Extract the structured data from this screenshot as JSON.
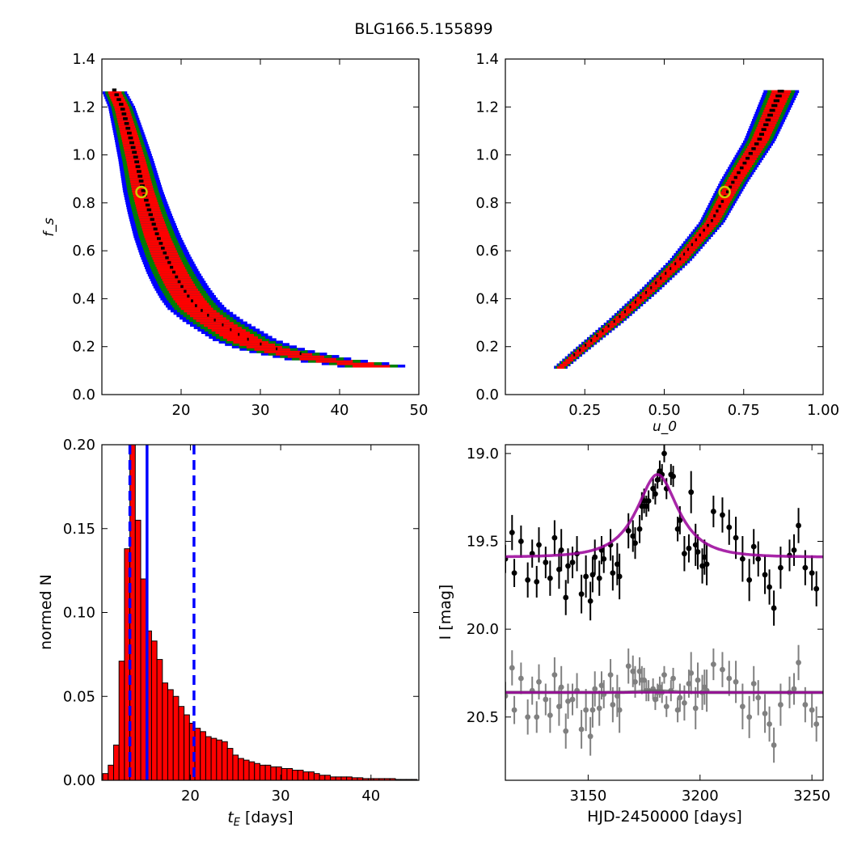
{
  "title": "BLG166.5.155899",
  "chart_data": [
    {
      "panel": "top-left",
      "type": "heatmap",
      "title": "",
      "xlabel": "",
      "ylabel": "f_s",
      "xlim": [
        10,
        50
      ],
      "ylim": [
        0.0,
        1.4
      ],
      "xticks": [
        20,
        30,
        40,
        50
      ],
      "yticks": [
        0.0,
        0.2,
        0.4,
        0.6,
        0.8,
        1.0,
        1.2,
        1.4
      ],
      "ytick_labels": [
        "0.0",
        "0.2",
        "0.4",
        "0.6",
        "0.8",
        "1.0",
        "1.2",
        "1.4"
      ],
      "levels": [
        {
          "color": "#0000ff",
          "level": "3-sigma"
        },
        {
          "color": "#007f00",
          "level": "2-sigma"
        },
        {
          "color": "#ff0000",
          "level": "1-sigma"
        },
        {
          "color": "#000000",
          "level": "best"
        }
      ],
      "ridge": [
        [
          11.5,
          1.27
        ],
        [
          12.5,
          1.2
        ],
        [
          13.5,
          1.08
        ],
        [
          14.3,
          0.98
        ],
        [
          15.2,
          0.85
        ],
        [
          16.0,
          0.76
        ],
        [
          17.0,
          0.66
        ],
        [
          18.0,
          0.58
        ],
        [
          19.0,
          0.51
        ],
        [
          20.0,
          0.45
        ],
        [
          21.0,
          0.4
        ],
        [
          22.0,
          0.36
        ],
        [
          24.0,
          0.31
        ],
        [
          26.0,
          0.27
        ],
        [
          28.0,
          0.23
        ],
        [
          30.0,
          0.205
        ],
        [
          32.0,
          0.185
        ],
        [
          35.0,
          0.165
        ],
        [
          38.0,
          0.145
        ],
        [
          42.0,
          0.13
        ],
        [
          45.0,
          0.115
        ]
      ],
      "best_fit": [
        15.0,
        0.845
      ]
    },
    {
      "panel": "top-right",
      "type": "heatmap",
      "title": "",
      "xlabel": "u_0",
      "ylabel": "",
      "xlim": [
        0.0,
        1.0
      ],
      "ylim": [
        0.0,
        1.4
      ],
      "xticks": [
        0.25,
        0.5,
        0.75,
        1.0
      ],
      "xtick_labels": [
        "0.25",
        "0.50",
        "0.75",
        "1.00"
      ],
      "yticks": [
        0.0,
        0.2,
        0.4,
        0.6,
        0.8,
        1.0,
        1.2,
        1.4
      ],
      "ytick_labels": [
        "0.0",
        "0.2",
        "0.4",
        "0.6",
        "0.8",
        "1.0",
        "1.2",
        "1.4"
      ],
      "ridge": [
        [
          0.17,
          0.11
        ],
        [
          0.25,
          0.2
        ],
        [
          0.35,
          0.31
        ],
        [
          0.45,
          0.43
        ],
        [
          0.55,
          0.56
        ],
        [
          0.65,
          0.72
        ],
        [
          0.72,
          0.89
        ],
        [
          0.8,
          1.06
        ],
        [
          0.87,
          1.27
        ]
      ],
      "best_fit": [
        0.69,
        0.845
      ]
    },
    {
      "panel": "bottom-left",
      "type": "bar",
      "title": "",
      "xlabel": "t_E [days]",
      "xlabel_unit": "[days]",
      "ylabel": "normed N",
      "xlim": [
        10.2,
        45.3
      ],
      "ylim": [
        0.0,
        0.2
      ],
      "xticks": [
        20,
        30,
        40
      ],
      "yticks": [
        0.0,
        0.05,
        0.1,
        0.15,
        0.2
      ],
      "ytick_labels": [
        "0.00",
        "0.05",
        "0.10",
        "0.15",
        "0.20"
      ],
      "bin_start": 10.3,
      "bin_width": 0.6,
      "values": [
        0.004,
        0.009,
        0.021,
        0.071,
        0.138,
        0.2,
        0.155,
        0.12,
        0.089,
        0.083,
        0.072,
        0.058,
        0.054,
        0.05,
        0.044,
        0.039,
        0.034,
        0.031,
        0.029,
        0.026,
        0.025,
        0.024,
        0.023,
        0.019,
        0.015,
        0.013,
        0.012,
        0.011,
        0.01,
        0.009,
        0.009,
        0.008,
        0.008,
        0.007,
        0.007,
        0.006,
        0.006,
        0.005,
        0.005,
        0.004,
        0.003,
        0.003,
        0.002,
        0.002,
        0.002,
        0.002,
        0.0015,
        0.0015,
        0.001,
        0.001,
        0.001,
        0.001,
        0.001,
        0.001,
        0.0005,
        0.0005,
        0.0005,
        0.0005
      ],
      "bar_color": "#ff0000",
      "vlines": [
        {
          "x": 13.3,
          "style": "dashed",
          "color": "#0000ff"
        },
        {
          "x": 15.2,
          "style": "solid",
          "color": "#0000ff"
        },
        {
          "x": 20.4,
          "style": "dashed",
          "color": "#0000ff"
        }
      ]
    },
    {
      "panel": "bottom-right",
      "type": "scatter",
      "title": "",
      "xlabel": "HJD-2450000 [days]",
      "ylabel": "I [mag]",
      "xlim": [
        3113,
        3255
      ],
      "ylim": [
        20.86,
        18.95
      ],
      "y_inverted": true,
      "xticks": [
        3150,
        3200,
        3250
      ],
      "yticks": [
        19.0,
        19.5,
        20.0,
        20.5
      ],
      "ytick_labels": [
        "19.0",
        "19.5",
        "20.0",
        "20.5"
      ],
      "model": {
        "t0": 3181,
        "tE": 15.2,
        "u0": 0.69,
        "baseline": 19.59,
        "peak": 19.12,
        "color": "#990099"
      },
      "residual_baseline": 20.36,
      "series": [
        {
          "kind": "data",
          "color": "#000000",
          "x": [
            3113,
            3116,
            3117,
            3120,
            3123,
            3125,
            3127,
            3128,
            3131,
            3133,
            3135,
            3137,
            3138,
            3140,
            3141,
            3143,
            3145,
            3147,
            3149,
            3151,
            3152,
            3153,
            3155,
            3156,
            3157,
            3160,
            3161,
            3163,
            3164,
            3168,
            3170,
            3171,
            3173,
            3174,
            3175,
            3176,
            3177,
            3179,
            3180,
            3181,
            3182,
            3183,
            3184,
            3185,
            3187,
            3188,
            3190,
            3191,
            3193,
            3195,
            3196,
            3198,
            3199,
            3201,
            3202,
            3203,
            3206,
            3210,
            3213,
            3216,
            3219,
            3222,
            3224,
            3226,
            3229,
            3231,
            3233,
            3236,
            3240,
            3242,
            3244,
            3247,
            3250,
            3252
          ],
          "y": [
            19.6,
            19.45,
            19.68,
            19.5,
            19.72,
            19.57,
            19.73,
            19.52,
            19.62,
            19.71,
            19.48,
            19.66,
            19.55,
            19.82,
            19.64,
            19.62,
            19.57,
            19.8,
            19.7,
            19.84,
            19.69,
            19.59,
            19.71,
            19.55,
            19.6,
            19.52,
            19.68,
            19.63,
            19.7,
            19.44,
            19.47,
            19.51,
            19.43,
            19.3,
            19.27,
            19.3,
            19.27,
            19.2,
            19.23,
            19.15,
            19.1,
            19.12,
            19.0,
            19.2,
            19.12,
            19.13,
            19.43,
            19.38,
            19.57,
            19.54,
            19.22,
            19.52,
            19.56,
            19.64,
            19.59,
            19.63,
            19.33,
            19.35,
            19.42,
            19.48,
            19.6,
            19.72,
            19.53,
            19.6,
            19.69,
            19.76,
            19.88,
            19.65,
            19.58,
            19.55,
            19.41,
            19.65,
            19.68,
            19.77
          ],
          "err": [
            0.08,
            0.1,
            0.08,
            0.09,
            0.1,
            0.08,
            0.09,
            0.1,
            0.09,
            0.1,
            0.1,
            0.11,
            0.12,
            0.1,
            0.1,
            0.09,
            0.1,
            0.11,
            0.12,
            0.11,
            0.1,
            0.1,
            0.1,
            0.08,
            0.08,
            0.09,
            0.1,
            0.12,
            0.13,
            0.1,
            0.09,
            0.09,
            0.08,
            0.08,
            0.07,
            0.06,
            0.06,
            0.06,
            0.06,
            0.05,
            0.06,
            0.06,
            0.05,
            0.06,
            0.06,
            0.06,
            0.07,
            0.08,
            0.1,
            0.08,
            0.12,
            0.12,
            0.1,
            0.1,
            0.1,
            0.12,
            0.09,
            0.1,
            0.1,
            0.12,
            0.13,
            0.12,
            0.1,
            0.1,
            0.11,
            0.1,
            0.1,
            0.12,
            0.09,
            0.09,
            0.1,
            0.1,
            0.1,
            0.1
          ]
        },
        {
          "kind": "residuals",
          "color": "#808080",
          "x": [
            3113,
            3116,
            3117,
            3120,
            3123,
            3125,
            3127,
            3128,
            3131,
            3133,
            3135,
            3137,
            3138,
            3140,
            3141,
            3143,
            3145,
            3147,
            3149,
            3151,
            3152,
            3153,
            3155,
            3156,
            3157,
            3160,
            3161,
            3163,
            3164,
            3168,
            3170,
            3171,
            3173,
            3174,
            3175,
            3176,
            3177,
            3179,
            3180,
            3181,
            3182,
            3183,
            3184,
            3185,
            3187,
            3188,
            3190,
            3191,
            3193,
            3195,
            3196,
            3198,
            3199,
            3201,
            3202,
            3203,
            3206,
            3210,
            3213,
            3216,
            3219,
            3222,
            3224,
            3226,
            3229,
            3231,
            3233,
            3236,
            3240,
            3242,
            3244,
            3247,
            3250,
            3252
          ],
          "y": [
            20.38,
            20.22,
            20.46,
            20.28,
            20.5,
            20.35,
            20.5,
            20.3,
            20.4,
            20.49,
            20.26,
            20.44,
            20.33,
            20.58,
            20.41,
            20.4,
            20.35,
            20.57,
            20.46,
            20.61,
            20.46,
            20.34,
            20.45,
            20.32,
            20.37,
            20.26,
            20.43,
            20.38,
            20.46,
            20.21,
            20.24,
            20.3,
            20.24,
            20.29,
            20.29,
            20.35,
            20.35,
            20.34,
            20.4,
            20.36,
            20.33,
            20.36,
            20.26,
            20.44,
            20.35,
            20.28,
            20.46,
            20.39,
            20.42,
            20.31,
            20.25,
            20.45,
            20.29,
            20.36,
            20.33,
            20.35,
            20.2,
            20.23,
            20.28,
            20.3,
            20.44,
            20.5,
            20.31,
            20.39,
            20.48,
            20.54,
            20.66,
            20.43,
            20.36,
            20.34,
            20.19,
            20.43,
            20.46,
            20.54
          ],
          "err": [
            0.08,
            0.1,
            0.08,
            0.09,
            0.1,
            0.08,
            0.09,
            0.1,
            0.09,
            0.1,
            0.1,
            0.11,
            0.12,
            0.1,
            0.1,
            0.09,
            0.1,
            0.11,
            0.12,
            0.11,
            0.1,
            0.1,
            0.1,
            0.08,
            0.08,
            0.09,
            0.1,
            0.12,
            0.13,
            0.1,
            0.09,
            0.09,
            0.08,
            0.08,
            0.07,
            0.06,
            0.06,
            0.06,
            0.06,
            0.05,
            0.06,
            0.06,
            0.05,
            0.06,
            0.06,
            0.06,
            0.07,
            0.08,
            0.1,
            0.08,
            0.12,
            0.12,
            0.1,
            0.1,
            0.1,
            0.12,
            0.09,
            0.1,
            0.1,
            0.12,
            0.13,
            0.12,
            0.1,
            0.1,
            0.11,
            0.1,
            0.1,
            0.12,
            0.09,
            0.09,
            0.1,
            0.1,
            0.1,
            0.1
          ]
        }
      ]
    }
  ]
}
